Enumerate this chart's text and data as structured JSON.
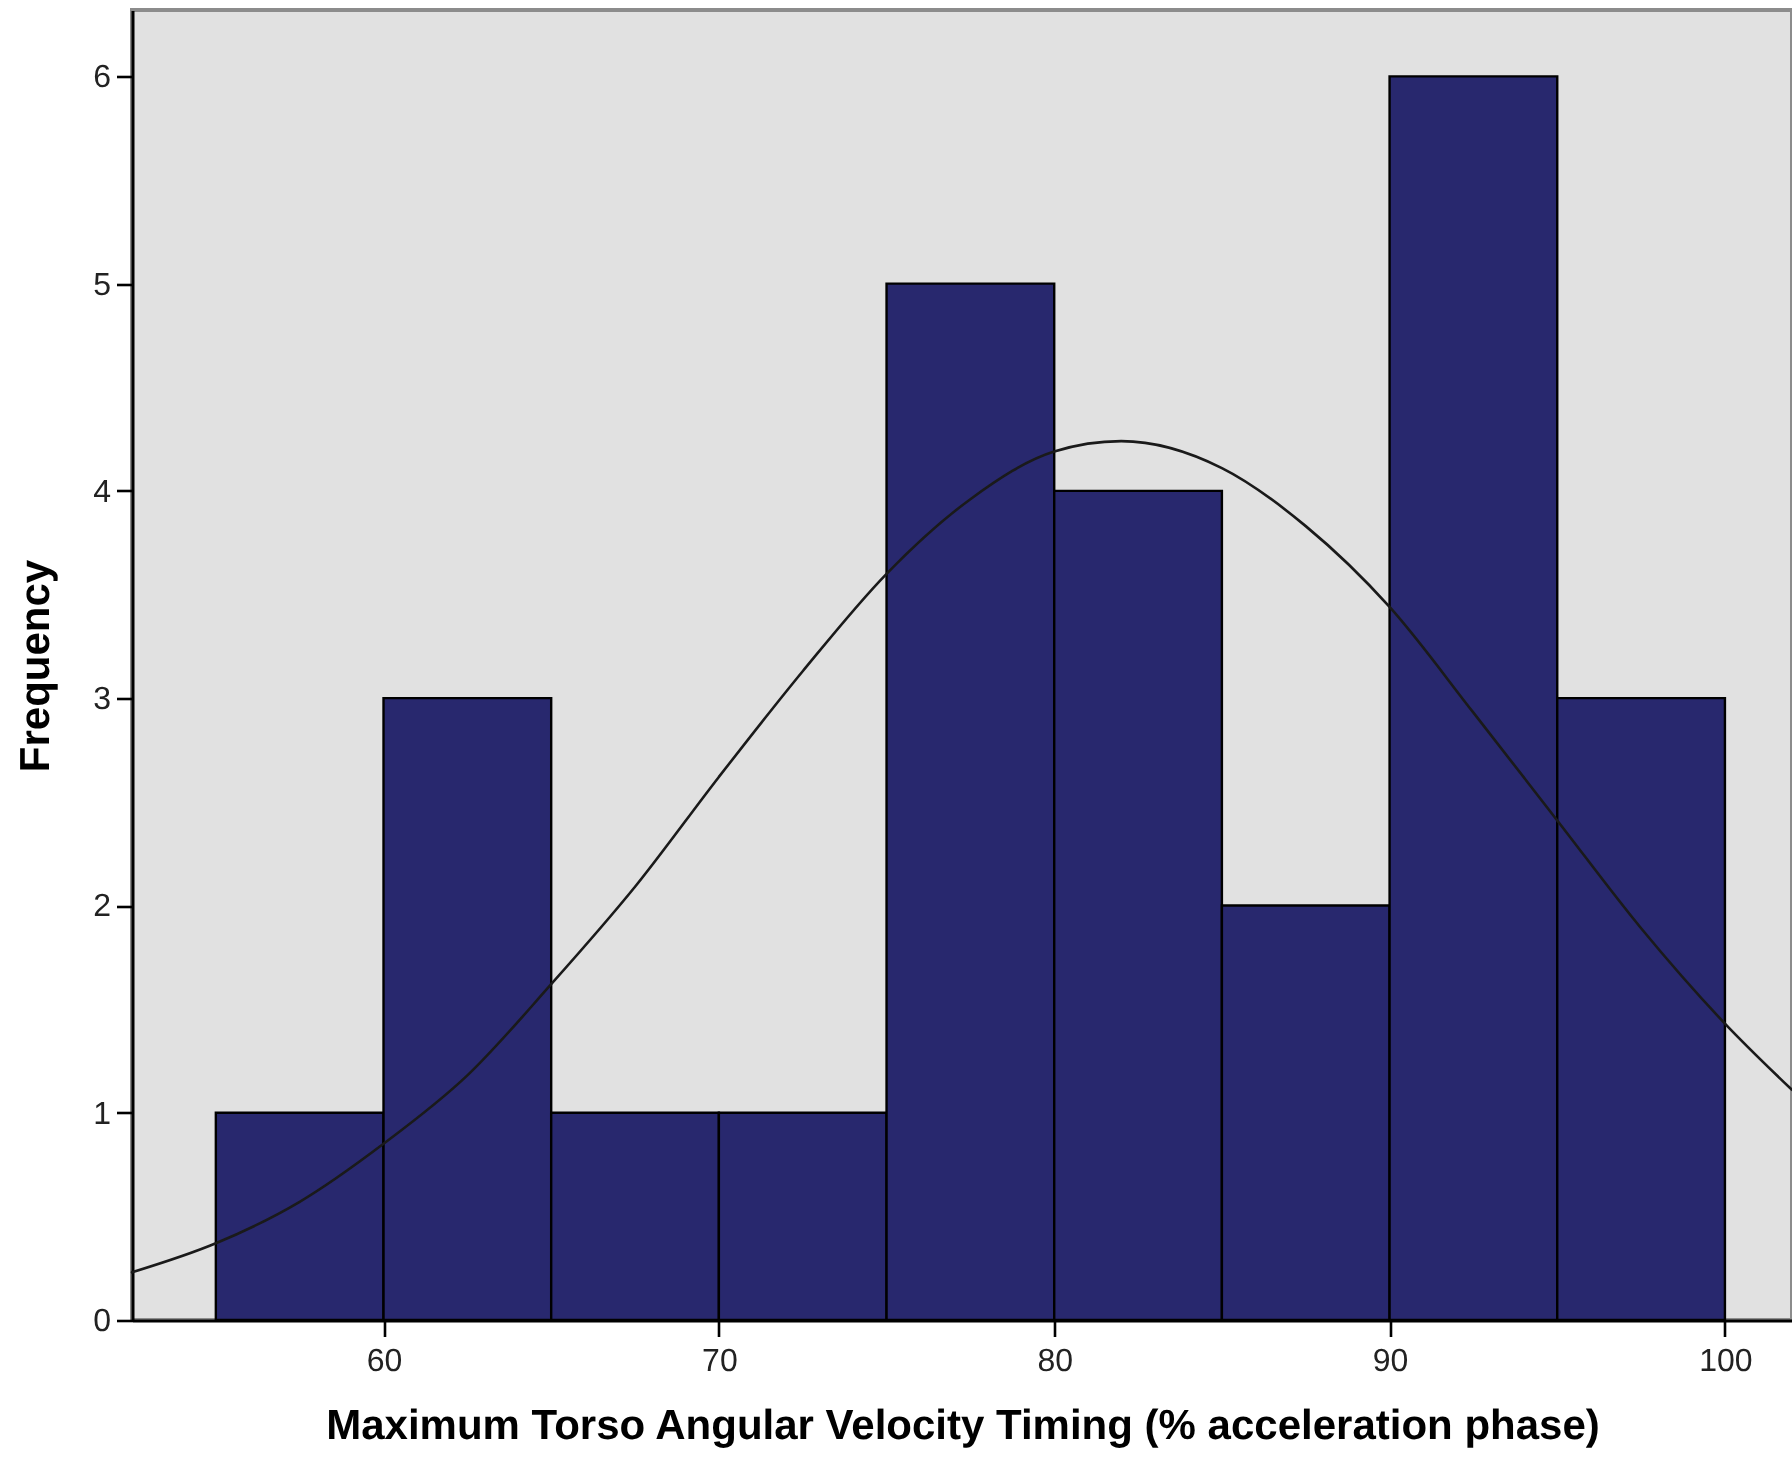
{
  "chart_data": {
    "type": "histogram",
    "xlabel": "Maximum Torso Angular Velocity Timing (% acceleration phase)",
    "ylabel": "Frequency",
    "bins": [
      55,
      60,
      65,
      70,
      75,
      80,
      85,
      90,
      95,
      100
    ],
    "values": [
      1,
      3,
      1,
      1,
      5,
      4,
      2,
      6,
      3
    ],
    "color": "#28286e",
    "xlim": [
      52.5,
      102
    ],
    "xticks": [
      60,
      70,
      80,
      90,
      100
    ],
    "ylim": [
      0,
      6.32
    ],
    "yticks": [
      0,
      1,
      2,
      3,
      4,
      5,
      6
    ],
    "series": [
      {
        "type": "line",
        "color": "#1a1a1a",
        "line_style": "solid",
        "marker": "none",
        "x": [
          52.5,
          55,
          57.5,
          60,
          62.5,
          65,
          67.5,
          70,
          72.5,
          75,
          77.5,
          80,
          82,
          85,
          87.5,
          90,
          92.5,
          95,
          97.5,
          100,
          102
        ],
        "values": [
          0.23,
          0.37,
          0.57,
          0.85,
          1.18,
          1.62,
          2.09,
          2.62,
          3.13,
          3.6,
          3.96,
          4.19,
          4.24,
          4.11,
          3.83,
          3.44,
          2.93,
          2.41,
          1.89,
          1.43,
          1.11
        ]
      }
    ]
  }
}
